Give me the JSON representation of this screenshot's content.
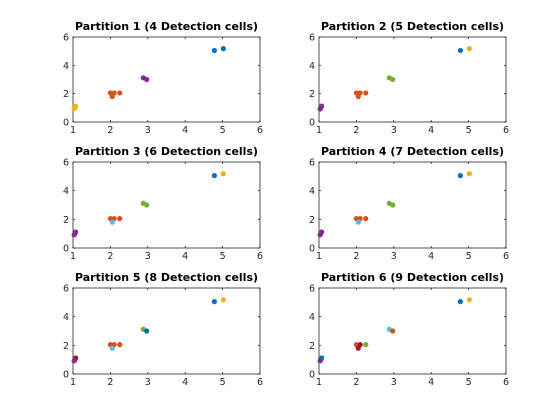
{
  "colors": {
    "blue": "#0072BD",
    "orange": "#D95319",
    "yellow": "#EDB120",
    "purple": "#7E2F8E",
    "green": "#77AC30",
    "cyan": "#4DBEEE",
    "red": "#A2142F"
  },
  "chart_data": [
    {
      "type": "scatter",
      "title": "Partition 1 (4 Detection cells)",
      "xlim": [
        1,
        6
      ],
      "ylim": [
        0,
        6
      ],
      "xticks": [
        "1",
        "2",
        "3",
        "4",
        "5",
        "6"
      ],
      "yticks": [
        "0",
        "2",
        "4",
        "6"
      ],
      "grid": false,
      "points": [
        {
          "x": 1.05,
          "y": 1.0,
          "color": "yellow"
        },
        {
          "x": 1.07,
          "y": 1.12,
          "color": "yellow"
        },
        {
          "x": 1.03,
          "y": 0.95,
          "color": "yellow"
        },
        {
          "x": 2.0,
          "y": 2.05,
          "color": "orange"
        },
        {
          "x": 2.1,
          "y": 2.05,
          "color": "orange"
        },
        {
          "x": 2.05,
          "y": 1.8,
          "color": "orange"
        },
        {
          "x": 2.25,
          "y": 2.05,
          "color": "orange"
        },
        {
          "x": 2.88,
          "y": 3.12,
          "color": "purple"
        },
        {
          "x": 2.97,
          "y": 3.0,
          "color": "purple"
        },
        {
          "x": 4.78,
          "y": 5.05,
          "color": "blue"
        },
        {
          "x": 5.02,
          "y": 5.18,
          "color": "blue"
        }
      ]
    },
    {
      "type": "scatter",
      "title": "Partition 2 (5 Detection cells)",
      "xlim": [
        1,
        6
      ],
      "ylim": [
        0,
        6
      ],
      "xticks": [
        "1",
        "2",
        "3",
        "4",
        "5",
        "6"
      ],
      "yticks": [
        "0",
        "2",
        "4",
        "6"
      ],
      "grid": false,
      "points": [
        {
          "x": 1.05,
          "y": 1.0,
          "color": "purple"
        },
        {
          "x": 1.07,
          "y": 1.12,
          "color": "purple"
        },
        {
          "x": 1.03,
          "y": 0.92,
          "color": "purple"
        },
        {
          "x": 2.0,
          "y": 2.05,
          "color": "orange"
        },
        {
          "x": 2.1,
          "y": 2.05,
          "color": "orange"
        },
        {
          "x": 2.05,
          "y": 1.8,
          "color": "orange"
        },
        {
          "x": 2.25,
          "y": 2.05,
          "color": "orange"
        },
        {
          "x": 2.88,
          "y": 3.12,
          "color": "green"
        },
        {
          "x": 2.97,
          "y": 3.0,
          "color": "green"
        },
        {
          "x": 4.78,
          "y": 5.05,
          "color": "blue"
        },
        {
          "x": 5.02,
          "y": 5.18,
          "color": "yellow"
        }
      ]
    },
    {
      "type": "scatter",
      "title": "Partition 3 (6 Detection cells)",
      "xlim": [
        1,
        6
      ],
      "ylim": [
        0,
        6
      ],
      "xticks": [
        "1",
        "2",
        "3",
        "4",
        "5",
        "6"
      ],
      "yticks": [
        "0",
        "2",
        "4",
        "6"
      ],
      "grid": false,
      "points": [
        {
          "x": 1.05,
          "y": 1.0,
          "color": "purple"
        },
        {
          "x": 1.07,
          "y": 1.12,
          "color": "purple"
        },
        {
          "x": 1.03,
          "y": 0.92,
          "color": "purple"
        },
        {
          "x": 2.0,
          "y": 2.05,
          "color": "orange"
        },
        {
          "x": 2.1,
          "y": 2.05,
          "color": "orange"
        },
        {
          "x": 2.05,
          "y": 1.8,
          "color": "cyan"
        },
        {
          "x": 2.25,
          "y": 2.05,
          "color": "orange"
        },
        {
          "x": 2.88,
          "y": 3.12,
          "color": "green"
        },
        {
          "x": 2.97,
          "y": 3.0,
          "color": "green"
        },
        {
          "x": 4.78,
          "y": 5.05,
          "color": "blue"
        },
        {
          "x": 5.02,
          "y": 5.18,
          "color": "yellow"
        }
      ]
    },
    {
      "type": "scatter",
      "title": "Partition 4 (7 Detection cells)",
      "xlim": [
        1,
        6
      ],
      "ylim": [
        0,
        6
      ],
      "xticks": [
        "1",
        "2",
        "3",
        "4",
        "5",
        "6"
      ],
      "yticks": [
        "0",
        "2",
        "4",
        "6"
      ],
      "grid": false,
      "points": [
        {
          "x": 1.05,
          "y": 1.0,
          "color": "red"
        },
        {
          "x": 1.07,
          "y": 1.12,
          "color": "purple"
        },
        {
          "x": 1.03,
          "y": 0.92,
          "color": "purple"
        },
        {
          "x": 2.0,
          "y": 2.05,
          "color": "orange"
        },
        {
          "x": 2.1,
          "y": 2.05,
          "color": "orange"
        },
        {
          "x": 2.05,
          "y": 1.8,
          "color": "cyan"
        },
        {
          "x": 2.25,
          "y": 2.05,
          "color": "orange"
        },
        {
          "x": 2.88,
          "y": 3.12,
          "color": "green"
        },
        {
          "x": 2.97,
          "y": 3.0,
          "color": "green"
        },
        {
          "x": 4.78,
          "y": 5.05,
          "color": "blue"
        },
        {
          "x": 5.02,
          "y": 5.18,
          "color": "yellow"
        }
      ]
    },
    {
      "type": "scatter",
      "title": "Partition 5 (8 Detection cells)",
      "xlim": [
        1,
        6
      ],
      "ylim": [
        0,
        6
      ],
      "xticks": [
        "1",
        "2",
        "3",
        "4",
        "5",
        "6"
      ],
      "yticks": [
        "0",
        "2",
        "4",
        "6"
      ],
      "grid": false,
      "points": [
        {
          "x": 1.05,
          "y": 1.0,
          "color": "red"
        },
        {
          "x": 1.07,
          "y": 1.12,
          "color": "red"
        },
        {
          "x": 1.03,
          "y": 0.92,
          "color": "purple"
        },
        {
          "x": 2.0,
          "y": 2.05,
          "color": "orange"
        },
        {
          "x": 2.1,
          "y": 2.05,
          "color": "orange"
        },
        {
          "x": 2.05,
          "y": 1.8,
          "color": "cyan"
        },
        {
          "x": 2.25,
          "y": 2.05,
          "color": "orange"
        },
        {
          "x": 2.88,
          "y": 3.12,
          "color": "green"
        },
        {
          "x": 2.97,
          "y": 3.0,
          "color": "blue"
        },
        {
          "x": 4.78,
          "y": 5.05,
          "color": "blue"
        },
        {
          "x": 5.02,
          "y": 5.18,
          "color": "yellow"
        }
      ]
    },
    {
      "type": "scatter",
      "title": "Partition 6 (9 Detection cells)",
      "xlim": [
        1,
        6
      ],
      "ylim": [
        0,
        6
      ],
      "xticks": [
        "1",
        "2",
        "3",
        "4",
        "5",
        "6"
      ],
      "yticks": [
        "0",
        "2",
        "4",
        "6"
      ],
      "grid": false,
      "points": [
        {
          "x": 1.05,
          "y": 1.0,
          "color": "blue"
        },
        {
          "x": 1.07,
          "y": 1.12,
          "color": "blue"
        },
        {
          "x": 1.03,
          "y": 0.92,
          "color": "purple"
        },
        {
          "x": 2.0,
          "y": 2.05,
          "color": "orange"
        },
        {
          "x": 2.1,
          "y": 2.05,
          "color": "red"
        },
        {
          "x": 2.05,
          "y": 1.8,
          "color": "red"
        },
        {
          "x": 2.25,
          "y": 2.05,
          "color": "green"
        },
        {
          "x": 2.88,
          "y": 3.12,
          "color": "cyan"
        },
        {
          "x": 2.97,
          "y": 3.0,
          "color": "orange"
        },
        {
          "x": 4.78,
          "y": 5.05,
          "color": "blue"
        },
        {
          "x": 5.02,
          "y": 5.18,
          "color": "yellow"
        }
      ]
    }
  ]
}
